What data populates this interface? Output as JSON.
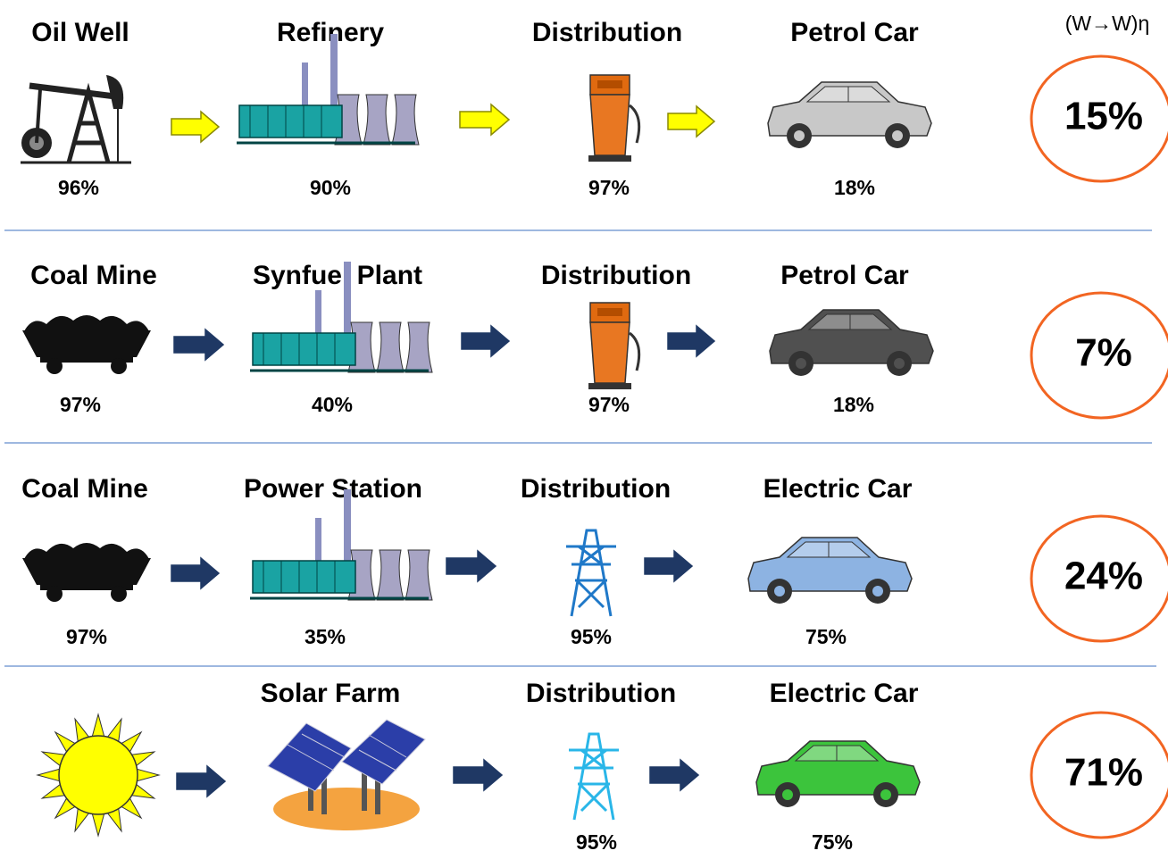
{
  "header": {
    "label": "(W→W)η"
  },
  "rows": [
    {
      "stages": [
        {
          "label": "Oil Well",
          "efficiency": "96%"
        },
        {
          "label": "Refinery",
          "efficiency": "90%"
        },
        {
          "label": "Distribution",
          "efficiency": "97%"
        },
        {
          "label": "Petrol Car",
          "efficiency": "18%"
        }
      ],
      "total": "15%"
    },
    {
      "stages": [
        {
          "label": "Coal Mine",
          "efficiency": "97%"
        },
        {
          "label": "Synfuel Plant",
          "efficiency": "40%"
        },
        {
          "label": "Distribution",
          "efficiency": "97%"
        },
        {
          "label": "Petrol Car",
          "efficiency": "18%"
        }
      ],
      "total": "7%"
    },
    {
      "stages": [
        {
          "label": "Coal Mine",
          "efficiency": "97%"
        },
        {
          "label": "Power Station",
          "efficiency": "35%"
        },
        {
          "label": "Distribution",
          "efficiency": "95%"
        },
        {
          "label": "Electric Car",
          "efficiency": "75%"
        }
      ],
      "total": "24%"
    },
    {
      "stages": [
        {
          "label": "Solar Farm"
        },
        {
          "label": "Distribution",
          "efficiency": "95%"
        },
        {
          "label": "Electric Car",
          "efficiency": "75%"
        }
      ],
      "total": "71%"
    }
  ]
}
